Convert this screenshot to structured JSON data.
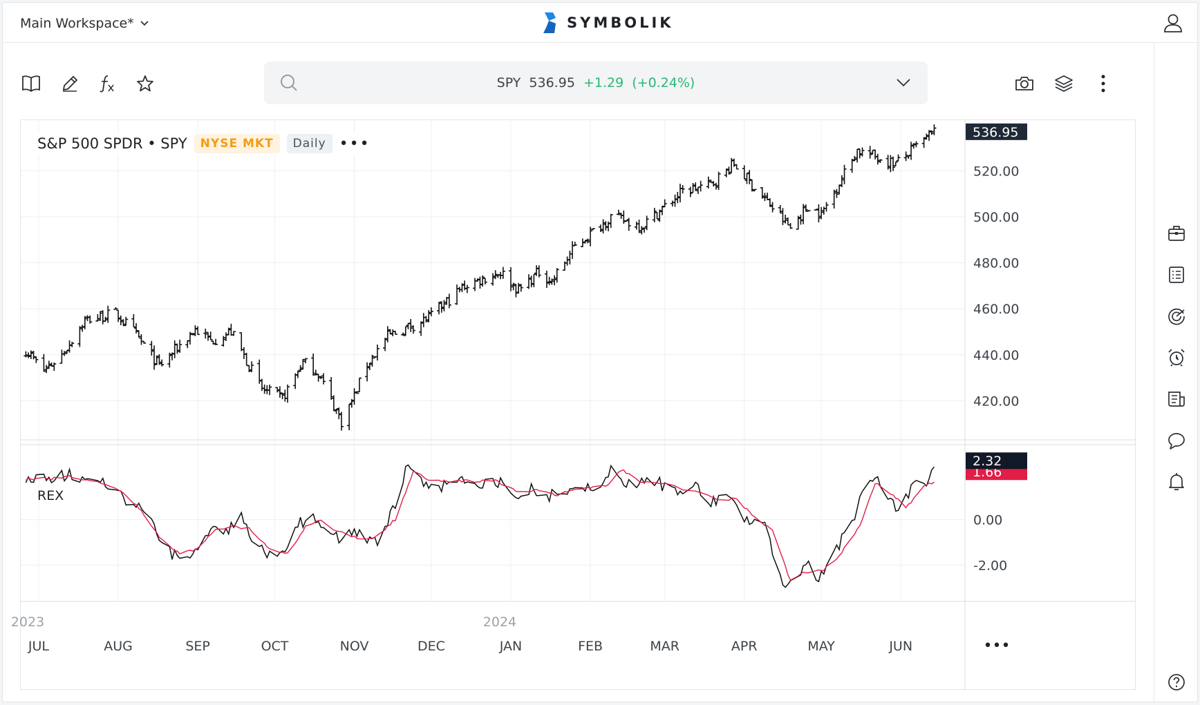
{
  "header": {
    "workspace": "Main Workspace*",
    "brand": "SYMBOLIK"
  },
  "toolbar": {
    "icons": [
      "book-icon",
      "pencil-icon",
      "function-icon",
      "star-icon",
      "camera-icon",
      "layers-icon",
      "more-vertical-icon"
    ]
  },
  "quote": {
    "symbol": "SPY",
    "price": "536.95",
    "change": "+1.29",
    "change_pct": "(+0.24%)",
    "change_color": "#2bb673"
  },
  "legend": {
    "name": "S&P 500 SPDR • SPY",
    "exchange": "NYSE MKT",
    "period": "Daily",
    "more": "•••"
  },
  "indicator": {
    "name": "REX"
  },
  "sidebar": {
    "icons": [
      "briefcase-icon",
      "list-icon",
      "radar-icon",
      "alarm-icon",
      "news-icon",
      "chat-icon",
      "bell-icon",
      "help-icon"
    ]
  },
  "chart_data": [
    {
      "type": "ohlc",
      "ylim": [
        403,
        542
      ],
      "yticks": [
        420,
        440,
        460,
        480,
        500,
        520
      ],
      "ytick_labels": [
        "420.00",
        "440.00",
        "460.00",
        "480.00",
        "500.00",
        "520.00"
      ],
      "last_price_label": "536.95",
      "last_price_color": "#1f2937",
      "anchors": [
        [
          "2023-06-26",
          442
        ],
        [
          "2023-07-03",
          433
        ],
        [
          "2023-07-10",
          440
        ],
        [
          "2023-07-19",
          455
        ],
        [
          "2023-07-31",
          458
        ],
        [
          "2023-08-07",
          450
        ],
        [
          "2023-08-17",
          435
        ],
        [
          "2023-08-31",
          451
        ],
        [
          "2023-09-06",
          446
        ],
        [
          "2023-09-14",
          450
        ],
        [
          "2023-09-26",
          425
        ],
        [
          "2023-10-04",
          421
        ],
        [
          "2023-10-12",
          437
        ],
        [
          "2023-10-18",
          432
        ],
        [
          "2023-10-27",
          411
        ],
        [
          "2023-11-01",
          422
        ],
        [
          "2023-11-06",
          436
        ],
        [
          "2023-11-14",
          448
        ],
        [
          "2023-11-30",
          456
        ],
        [
          "2023-12-14",
          470
        ],
        [
          "2023-12-28",
          476
        ],
        [
          "2024-01-04",
          468
        ],
        [
          "2024-01-12",
          476
        ],
        [
          "2024-01-17",
          472
        ],
        [
          "2024-01-26",
          487
        ],
        [
          "2024-02-09",
          500
        ],
        [
          "2024-02-21",
          496
        ],
        [
          "2024-03-08",
          511
        ],
        [
          "2024-03-19",
          514
        ],
        [
          "2024-03-28",
          523
        ],
        [
          "2024-04-04",
          514
        ],
        [
          "2024-04-19",
          495
        ],
        [
          "2024-04-26",
          505
        ],
        [
          "2024-05-01",
          501
        ],
        [
          "2024-05-15",
          529
        ],
        [
          "2024-05-30",
          523
        ],
        [
          "2024-06-14",
          537
        ]
      ]
    },
    {
      "type": "line",
      "indicator": "REX",
      "ylim": [
        -3.6,
        3.3
      ],
      "yticks": [
        -2,
        0
      ],
      "ytick_labels": [
        "-2.00",
        "0.00"
      ],
      "last_labels": [
        {
          "value": "2.32",
          "bg": "#111827"
        },
        {
          "value": "1.66",
          "bg": "#e11d48"
        }
      ],
      "series": [
        {
          "color": "#111111",
          "anchors": [
            [
              "2023-06-26",
              1.9
            ],
            [
              "2023-07-05",
              1.7
            ],
            [
              "2023-07-12",
              2.0
            ],
            [
              "2023-07-24",
              1.6
            ],
            [
              "2023-07-31",
              1.5
            ],
            [
              "2023-08-04",
              0.7
            ],
            [
              "2023-08-10",
              0.5
            ],
            [
              "2023-08-16",
              -0.6
            ],
            [
              "2023-08-22",
              -1.6
            ],
            [
              "2023-08-29",
              -1.5
            ],
            [
              "2023-09-05",
              -0.5
            ],
            [
              "2023-09-12",
              -0.6
            ],
            [
              "2023-09-18",
              0.2
            ],
            [
              "2023-09-22",
              -1.0
            ],
            [
              "2023-09-28",
              -1.5
            ],
            [
              "2023-10-04",
              -1.6
            ],
            [
              "2023-10-10",
              -0.2
            ],
            [
              "2023-10-17",
              0.1
            ],
            [
              "2023-10-23",
              -0.5
            ],
            [
              "2023-10-27",
              -0.9
            ],
            [
              "2023-11-01",
              -0.5
            ],
            [
              "2023-11-10",
              -1.0
            ],
            [
              "2023-11-16",
              0.4
            ],
            [
              "2023-11-22",
              2.4
            ],
            [
              "2023-11-28",
              1.6
            ],
            [
              "2023-12-05",
              1.5
            ],
            [
              "2023-12-12",
              1.9
            ],
            [
              "2023-12-20",
              1.5
            ],
            [
              "2023-12-28",
              1.7
            ],
            [
              "2024-01-04",
              1.0
            ],
            [
              "2024-01-10",
              1.4
            ],
            [
              "2024-01-16",
              1.0
            ],
            [
              "2024-01-25",
              1.5
            ],
            [
              "2024-02-05",
              1.3
            ],
            [
              "2024-02-09",
              2.3
            ],
            [
              "2024-02-16",
              1.5
            ],
            [
              "2024-02-26",
              1.7
            ],
            [
              "2024-03-06",
              1.2
            ],
            [
              "2024-03-12",
              1.5
            ],
            [
              "2024-03-19",
              0.8
            ],
            [
              "2024-03-27",
              0.9
            ],
            [
              "2024-04-02",
              -0.1
            ],
            [
              "2024-04-09",
              -0.2
            ],
            [
              "2024-04-16",
              -2.8
            ],
            [
              "2024-04-20",
              -3.0
            ],
            [
              "2024-04-26",
              -1.8
            ],
            [
              "2024-04-30",
              -2.7
            ],
            [
              "2024-05-06",
              -1.5
            ],
            [
              "2024-05-14",
              0.2
            ],
            [
              "2024-05-20",
              1.9
            ],
            [
              "2024-05-25",
              1.6
            ],
            [
              "2024-05-31",
              0.2
            ],
            [
              "2024-06-05",
              1.4
            ],
            [
              "2024-06-12",
              1.7
            ],
            [
              "2024-06-14",
              2.32
            ]
          ]
        },
        {
          "color": "#e11d48",
          "anchors": [
            [
              "2023-06-26",
              1.8
            ],
            [
              "2023-07-05",
              1.8
            ],
            [
              "2023-07-14",
              1.9
            ],
            [
              "2023-07-26",
              1.6
            ],
            [
              "2023-08-03",
              1.2
            ],
            [
              "2023-08-10",
              0.4
            ],
            [
              "2023-08-18",
              -0.9
            ],
            [
              "2023-08-25",
              -1.5
            ],
            [
              "2023-09-01",
              -1.3
            ],
            [
              "2023-09-08",
              -0.4
            ],
            [
              "2023-09-15",
              -0.3
            ],
            [
              "2023-09-21",
              -0.4
            ],
            [
              "2023-09-28",
              -1.2
            ],
            [
              "2023-10-06",
              -1.5
            ],
            [
              "2023-10-13",
              -0.3
            ],
            [
              "2023-10-19",
              0.0
            ],
            [
              "2023-10-25",
              -0.5
            ],
            [
              "2023-11-02",
              -0.8
            ],
            [
              "2023-11-09",
              -0.8
            ],
            [
              "2023-11-17",
              0.0
            ],
            [
              "2023-11-24",
              2.1
            ],
            [
              "2023-12-01",
              1.7
            ],
            [
              "2023-12-08",
              1.7
            ],
            [
              "2023-12-15",
              1.7
            ],
            [
              "2023-12-26",
              1.7
            ],
            [
              "2024-01-05",
              1.2
            ],
            [
              "2024-01-12",
              1.3
            ],
            [
              "2024-01-19",
              1.1
            ],
            [
              "2024-01-29",
              1.4
            ],
            [
              "2024-02-08",
              1.5
            ],
            [
              "2024-02-13",
              2.2
            ],
            [
              "2024-02-20",
              1.7
            ],
            [
              "2024-03-01",
              1.6
            ],
            [
              "2024-03-08",
              1.3
            ],
            [
              "2024-03-15",
              1.2
            ],
            [
              "2024-03-22",
              0.9
            ],
            [
              "2024-03-29",
              0.9
            ],
            [
              "2024-04-05",
              0.1
            ],
            [
              "2024-04-12",
              -0.5
            ],
            [
              "2024-04-19",
              -2.7
            ],
            [
              "2024-04-25",
              -2.3
            ],
            [
              "2024-05-02",
              -2.2
            ],
            [
              "2024-05-08",
              -1.6
            ],
            [
              "2024-05-16",
              -0.3
            ],
            [
              "2024-05-22",
              1.6
            ],
            [
              "2024-05-29",
              1.1
            ],
            [
              "2024-06-03",
              0.5
            ],
            [
              "2024-06-10",
              1.5
            ],
            [
              "2024-06-14",
              1.66
            ]
          ]
        }
      ]
    }
  ],
  "x_axis": {
    "months": [
      "JUL",
      "AUG",
      "SEP",
      "OCT",
      "NOV",
      "DEC",
      "JAN",
      "FEB",
      "MAR",
      "APR",
      "MAY",
      "JUN"
    ],
    "month_dates": [
      "2023-07-01",
      "2023-08-01",
      "2023-09-01",
      "2023-10-01",
      "2023-11-01",
      "2023-12-01",
      "2024-01-01",
      "2024-02-01",
      "2024-03-01",
      "2024-04-01",
      "2024-05-01",
      "2024-06-01"
    ],
    "years": [
      {
        "label": "2023",
        "date": "2023-07-01"
      },
      {
        "label": "2024",
        "date": "2024-01-01"
      }
    ],
    "range": [
      "2023-06-24",
      "2024-06-26"
    ],
    "more": "•••"
  }
}
